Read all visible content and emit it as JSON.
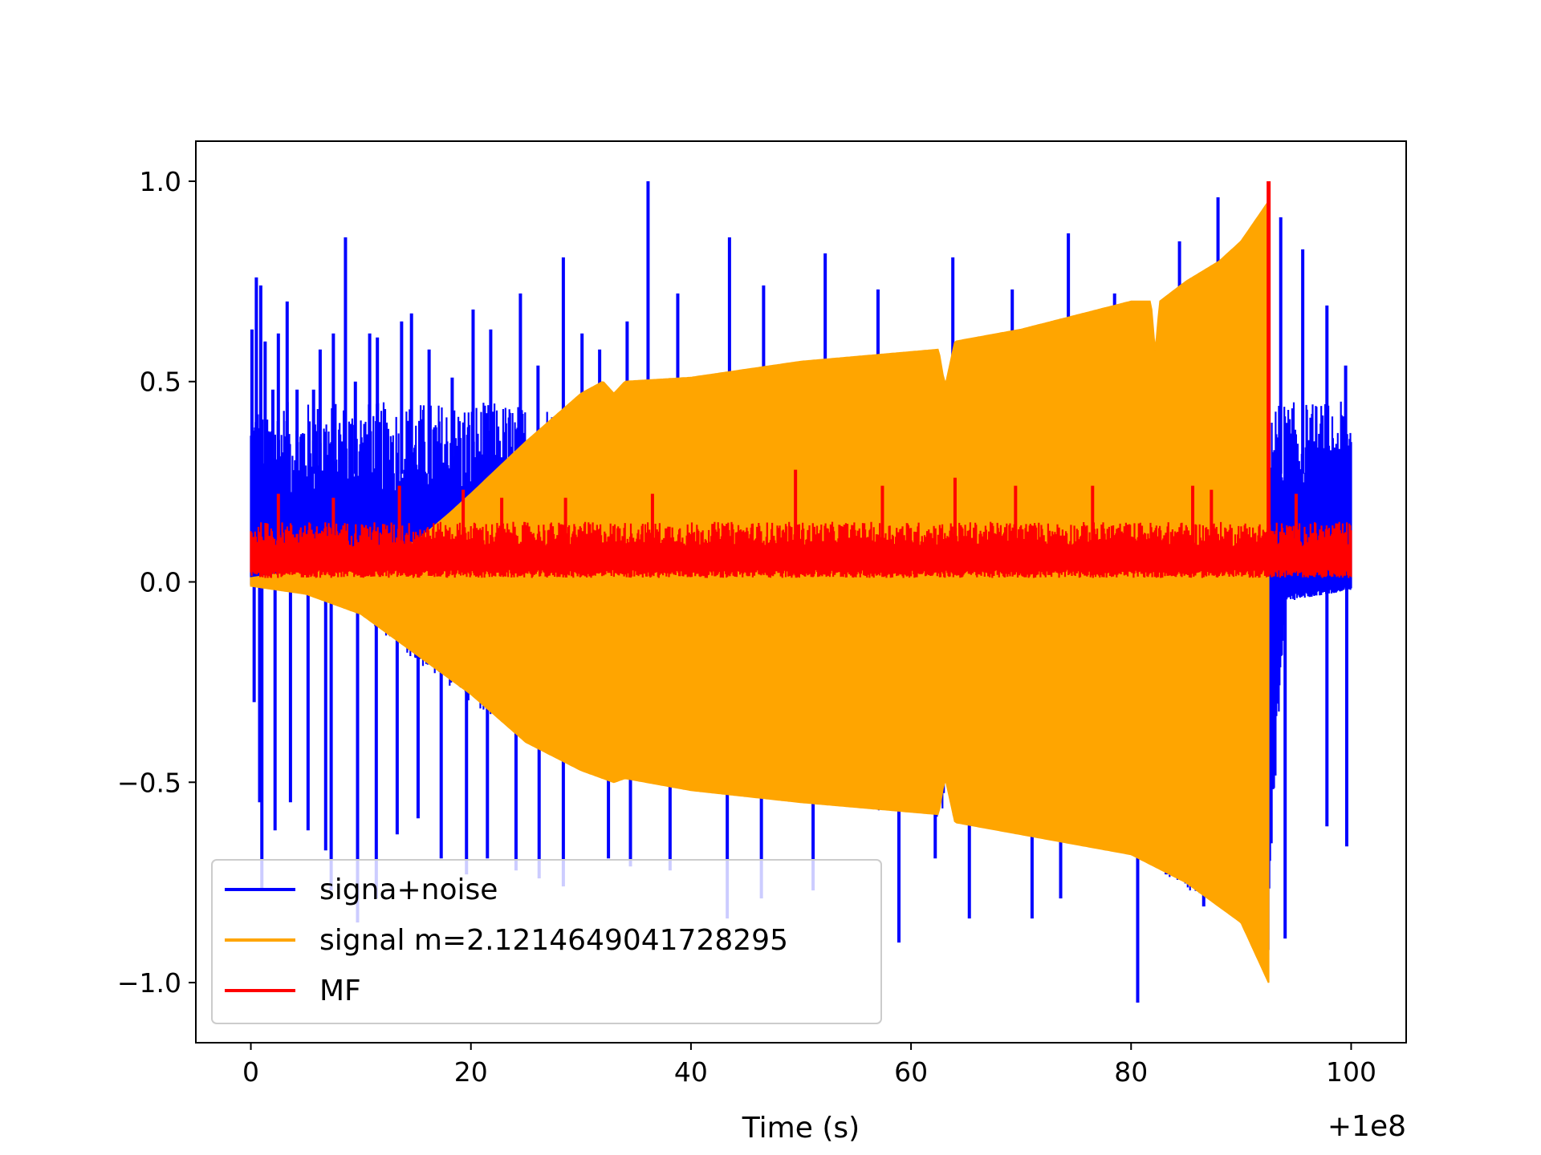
{
  "chart_data": {
    "type": "line",
    "title": "",
    "xlabel": "Time (s)",
    "ylabel": "",
    "x_offset_label": "+1e8",
    "xlim": [
      -5,
      105
    ],
    "ylim": [
      -1.15,
      1.1
    ],
    "xticks": [
      0,
      20,
      40,
      60,
      80,
      100
    ],
    "xtick_labels": [
      "0",
      "20",
      "40",
      "60",
      "80",
      "100"
    ],
    "yticks": [
      -1.0,
      -0.5,
      0.0,
      0.5,
      1.0
    ],
    "ytick_labels": [
      "−1.0",
      "−0.5",
      "0.0",
      "0.5",
      "1.0"
    ],
    "grid": false,
    "legend_position": "lower-left",
    "series": [
      {
        "name": "signa+noise",
        "color": "#0000ff",
        "x_range": [
          0,
          100
        ],
        "upper_envelope": {
          "x": [
            0,
            5,
            10,
            15,
            17,
            20,
            25,
            30,
            40,
            50,
            60,
            62.5,
            63.5,
            70,
            80,
            81.8,
            82.2,
            90,
            92.5,
            93.2,
            94,
            100
          ],
          "y": [
            0.45,
            0.45,
            0.45,
            0.45,
            0.45,
            0.45,
            0.45,
            0.45,
            0.5,
            0.5,
            0.5,
            0.5,
            0.5,
            0.5,
            0.5,
            0.5,
            0.5,
            0.5,
            0.5,
            0.45,
            0.45,
            0.45
          ]
        },
        "lower_envelope": {
          "x": [
            0,
            5,
            10,
            15,
            20,
            25,
            30,
            40,
            50,
            60,
            70,
            80,
            90,
            92.5,
            93.2,
            94,
            100
          ],
          "y": [
            -0.01,
            -0.03,
            -0.08,
            -0.2,
            -0.3,
            -0.4,
            -0.48,
            -0.52,
            -0.55,
            -0.58,
            -0.62,
            -0.68,
            -0.85,
            -0.95,
            -0.45,
            -0.05,
            -0.02
          ]
        },
        "spikes": [
          {
            "x": 0.1,
            "y": 0.63
          },
          {
            "x": 0.5,
            "y": 0.76
          },
          {
            "x": 0.9,
            "y": 0.74
          },
          {
            "x": 1.3,
            "y": 0.6
          },
          {
            "x": 2.0,
            "y": 0.48
          },
          {
            "x": 2.5,
            "y": 0.62
          },
          {
            "x": 3.3,
            "y": 0.7
          },
          {
            "x": 4.2,
            "y": 0.48
          },
          {
            "x": 5.7,
            "y": 0.48
          },
          {
            "x": 6.3,
            "y": 0.58
          },
          {
            "x": 7.5,
            "y": 0.62
          },
          {
            "x": 8.6,
            "y": 0.86
          },
          {
            "x": 9.5,
            "y": 0.5
          },
          {
            "x": 10.8,
            "y": 0.62
          },
          {
            "x": 11.5,
            "y": 0.61
          },
          {
            "x": 13.7,
            "y": 0.65
          },
          {
            "x": 14.6,
            "y": 0.67
          },
          {
            "x": 16.2,
            "y": 0.58
          },
          {
            "x": 18.3,
            "y": 0.51
          },
          {
            "x": 20.2,
            "y": 0.68
          },
          {
            "x": 21.8,
            "y": 0.63
          },
          {
            "x": 24.5,
            "y": 0.72
          },
          {
            "x": 26.1,
            "y": 0.54
          },
          {
            "x": 28.4,
            "y": 0.81
          },
          {
            "x": 30.1,
            "y": 0.62
          },
          {
            "x": 31.7,
            "y": 0.58
          },
          {
            "x": 34.2,
            "y": 0.65
          },
          {
            "x": 36.1,
            "y": 1.0
          },
          {
            "x": 38.8,
            "y": 0.72
          },
          {
            "x": 43.5,
            "y": 0.86
          },
          {
            "x": 46.6,
            "y": 0.74
          },
          {
            "x": 52.2,
            "y": 0.82
          },
          {
            "x": 57.0,
            "y": 0.73
          },
          {
            "x": 63.8,
            "y": 0.81
          },
          {
            "x": 69.2,
            "y": 0.73
          },
          {
            "x": 74.3,
            "y": 0.87
          },
          {
            "x": 78.5,
            "y": 0.72
          },
          {
            "x": 83.2,
            "y": 0.71
          },
          {
            "x": 84.4,
            "y": 0.85
          },
          {
            "x": 87.9,
            "y": 0.96
          },
          {
            "x": 93.6,
            "y": 0.91
          },
          {
            "x": 95.6,
            "y": 0.83
          },
          {
            "x": 97.8,
            "y": 0.69
          },
          {
            "x": 99.5,
            "y": 0.54
          },
          {
            "x": 0.3,
            "y": -0.3
          },
          {
            "x": 0.8,
            "y": -0.55
          },
          {
            "x": 1.0,
            "y": -0.77
          },
          {
            "x": 2.2,
            "y": -0.62
          },
          {
            "x": 3.6,
            "y": -0.55
          },
          {
            "x": 5.2,
            "y": -0.62
          },
          {
            "x": 6.8,
            "y": -0.67
          },
          {
            "x": 7.3,
            "y": -0.77
          },
          {
            "x": 9.7,
            "y": -0.85
          },
          {
            "x": 11.4,
            "y": -0.79
          },
          {
            "x": 13.3,
            "y": -0.63
          },
          {
            "x": 15.2,
            "y": -0.59
          },
          {
            "x": 17.3,
            "y": -0.69
          },
          {
            "x": 19.6,
            "y": -0.73
          },
          {
            "x": 21.5,
            "y": -0.69
          },
          {
            "x": 24.1,
            "y": -0.72
          },
          {
            "x": 26.2,
            "y": -0.74
          },
          {
            "x": 28.4,
            "y": -0.76
          },
          {
            "x": 32.5,
            "y": -0.69
          },
          {
            "x": 34.5,
            "y": -0.71
          },
          {
            "x": 38.1,
            "y": -0.72
          },
          {
            "x": 43.3,
            "y": -0.84
          },
          {
            "x": 46.4,
            "y": -0.79
          },
          {
            "x": 51.1,
            "y": -0.77
          },
          {
            "x": 58.9,
            "y": -0.9
          },
          {
            "x": 62.2,
            "y": -0.69
          },
          {
            "x": 65.3,
            "y": -0.84
          },
          {
            "x": 71.0,
            "y": -0.84
          },
          {
            "x": 73.6,
            "y": -0.79
          },
          {
            "x": 80.6,
            "y": -1.05
          },
          {
            "x": 83.2,
            "y": -0.73
          },
          {
            "x": 86.6,
            "y": -0.81
          },
          {
            "x": 89.6,
            "y": -0.82
          },
          {
            "x": 94.0,
            "y": -0.89
          },
          {
            "x": 97.8,
            "y": -0.61
          },
          {
            "x": 99.6,
            "y": -0.66
          }
        ]
      },
      {
        "name": "signal m=2.1214649041728295",
        "color": "#ffa500",
        "x_range": [
          0,
          92.5
        ],
        "upper_envelope": {
          "x": [
            0,
            5,
            10,
            15,
            18,
            20,
            25,
            30,
            32,
            33,
            34,
            40,
            50,
            62.5,
            63,
            63.2,
            64,
            70,
            80,
            81.8,
            82.2,
            82.6,
            85,
            88,
            90,
            92.5
          ],
          "y": [
            0.01,
            0.03,
            0.05,
            0.1,
            0.17,
            0.22,
            0.35,
            0.47,
            0.5,
            0.47,
            0.5,
            0.51,
            0.55,
            0.58,
            0.5,
            0.5,
            0.6,
            0.63,
            0.7,
            0.7,
            0.57,
            0.7,
            0.75,
            0.8,
            0.85,
            0.95
          ]
        },
        "lower_envelope": {
          "x": [
            0,
            5,
            10,
            15,
            20,
            25,
            30,
            33,
            34,
            40,
            50,
            62.5,
            63,
            63.2,
            64,
            70,
            80,
            85,
            90,
            92.5
          ],
          "y": [
            -0.01,
            -0.03,
            -0.08,
            -0.18,
            -0.28,
            -0.4,
            -0.47,
            -0.5,
            -0.49,
            -0.52,
            -0.55,
            -0.58,
            -0.5,
            -0.5,
            -0.6,
            -0.63,
            -0.68,
            -0.75,
            -0.85,
            -1.0
          ]
        }
      },
      {
        "name": "MF",
        "color": "#ff0000",
        "x_range": [
          0,
          100
        ],
        "band": [
          0.01,
          0.15
        ],
        "peak": {
          "x": 92.5,
          "y": 1.0
        },
        "spikes": [
          {
            "x": 2.5,
            "y": 0.22
          },
          {
            "x": 7.5,
            "y": 0.21
          },
          {
            "x": 13.5,
            "y": 0.24
          },
          {
            "x": 19.3,
            "y": 0.23
          },
          {
            "x": 22.8,
            "y": 0.21
          },
          {
            "x": 28.6,
            "y": 0.21
          },
          {
            "x": 36.5,
            "y": 0.22
          },
          {
            "x": 49.5,
            "y": 0.28
          },
          {
            "x": 57.4,
            "y": 0.24
          },
          {
            "x": 64.0,
            "y": 0.26
          },
          {
            "x": 69.5,
            "y": 0.24
          },
          {
            "x": 76.5,
            "y": 0.24
          },
          {
            "x": 85.6,
            "y": 0.24
          },
          {
            "x": 87.3,
            "y": 0.23
          },
          {
            "x": 95.0,
            "y": 0.22
          }
        ]
      }
    ]
  }
}
